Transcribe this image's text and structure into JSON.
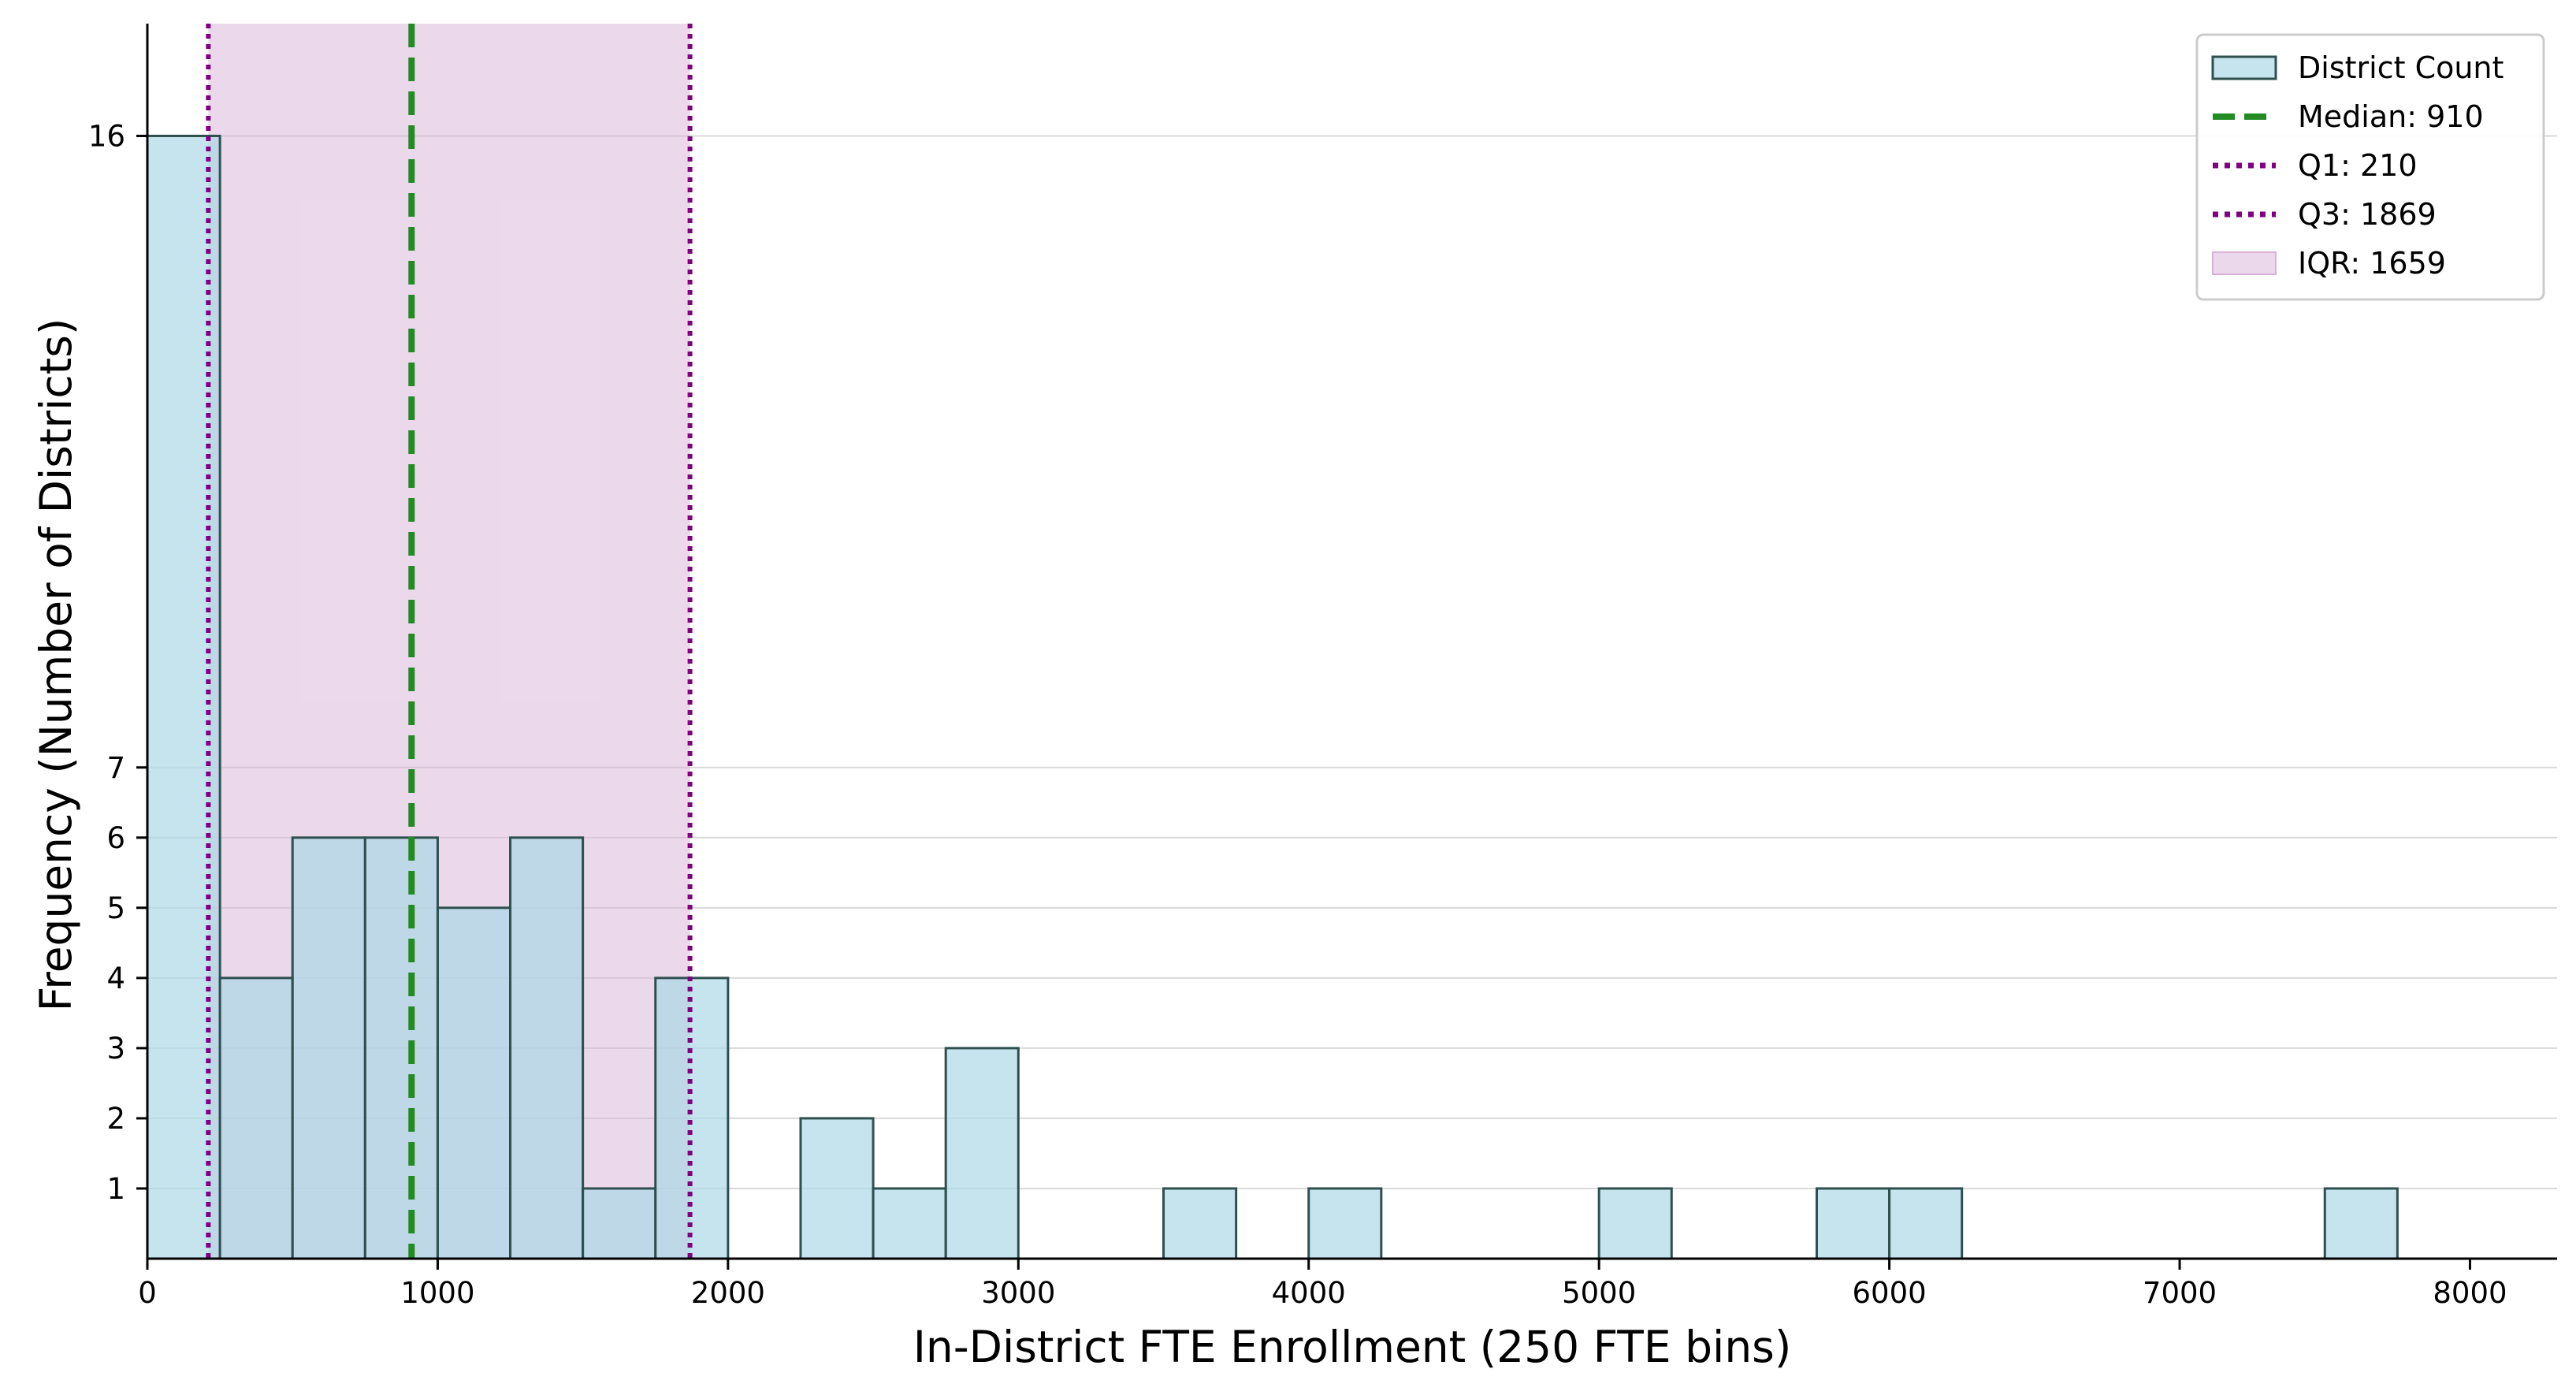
{
  "chart_data": {
    "type": "bar",
    "bin_width": 250,
    "bins": [
      {
        "start": 0,
        "end": 250,
        "count": 16
      },
      {
        "start": 250,
        "end": 500,
        "count": 4
      },
      {
        "start": 500,
        "end": 750,
        "count": 6
      },
      {
        "start": 750,
        "end": 1000,
        "count": 6
      },
      {
        "start": 1000,
        "end": 1250,
        "count": 5
      },
      {
        "start": 1250,
        "end": 1500,
        "count": 6
      },
      {
        "start": 1500,
        "end": 1750,
        "count": 1
      },
      {
        "start": 1750,
        "end": 2000,
        "count": 4
      },
      {
        "start": 2250,
        "end": 2500,
        "count": 2
      },
      {
        "start": 2500,
        "end": 2750,
        "count": 1
      },
      {
        "start": 2750,
        "end": 3000,
        "count": 3
      },
      {
        "start": 3500,
        "end": 3750,
        "count": 1
      },
      {
        "start": 4000,
        "end": 4250,
        "count": 1
      },
      {
        "start": 5000,
        "end": 5250,
        "count": 1
      },
      {
        "start": 5750,
        "end": 6000,
        "count": 1
      },
      {
        "start": 6000,
        "end": 6250,
        "count": 1
      },
      {
        "start": 7500,
        "end": 7750,
        "count": 1
      }
    ],
    "median": 910,
    "q1": 210,
    "q3": 1869,
    "xlabel": "In-District FTE Enrollment (250 FTE bins)",
    "ylabel": "Frequency (Number of Districts)",
    "xlim": [
      0,
      8300
    ],
    "ylim": [
      0,
      17.6
    ],
    "xticks": [
      0,
      1000,
      2000,
      3000,
      4000,
      5000,
      6000,
      7000,
      8000
    ],
    "yticks": [
      1,
      2,
      3,
      4,
      5,
      6,
      7,
      16
    ],
    "grid": "horizontal",
    "legend_position": "top-right",
    "legend": [
      {
        "label": "District Count",
        "kind": "patch"
      },
      {
        "label": "Median: 910",
        "kind": "dashed"
      },
      {
        "label": "Q1: 210",
        "kind": "dotted"
      },
      {
        "label": "Q3: 1869",
        "kind": "dotted"
      },
      {
        "label": "IQR: 1659",
        "kind": "area"
      }
    ],
    "colors": {
      "bar_fill": "#add8e6",
      "bar_edge": "#2f4f4f",
      "median": "#228b22",
      "quartile": "#800080",
      "iqr_fill": "#d8b2d8",
      "grid": "#d9d9d9"
    }
  }
}
